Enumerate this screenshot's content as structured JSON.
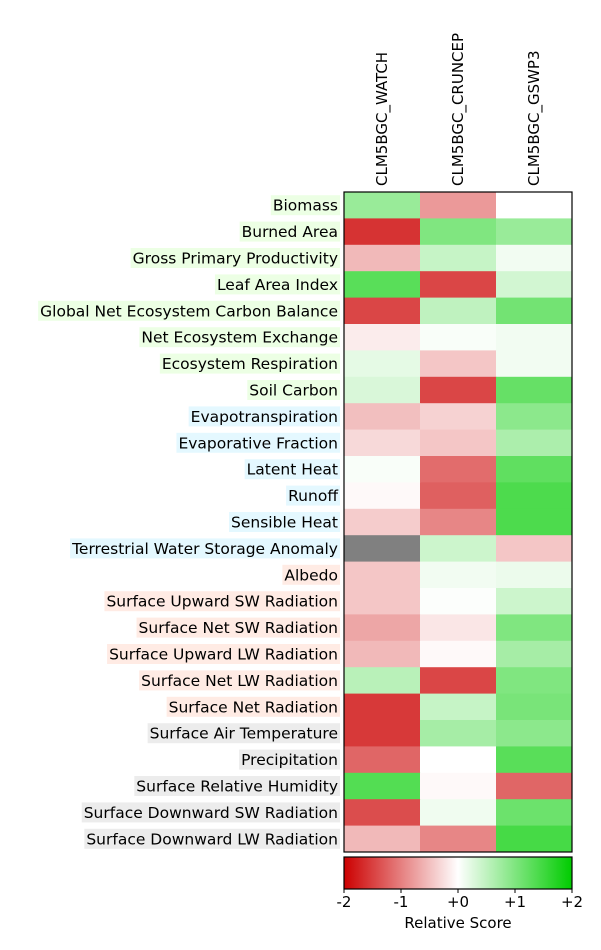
{
  "chart_data": {
    "type": "heatmap",
    "columns": [
      "CLM5BGC_WATCH",
      "CLM5BGC_CRUNCEP",
      "CLM5BGC_GSWP3"
    ],
    "rows": [
      {
        "label": "Biomass",
        "group": "ecosystem",
        "values": [
          0.8,
          -0.8,
          0.0
        ]
      },
      {
        "label": "Burned Area",
        "group": "ecosystem",
        "values": [
          -1.6,
          1.0,
          0.8
        ]
      },
      {
        "label": "Gross Primary Productivity",
        "group": "ecosystem",
        "values": [
          -0.55,
          0.45,
          0.1
        ]
      },
      {
        "label": "Leaf Area Index",
        "group": "ecosystem",
        "values": [
          1.3,
          -1.45,
          0.35
        ]
      },
      {
        "label": "Global Net Ecosystem Carbon Balance",
        "group": "ecosystem",
        "values": [
          -1.45,
          0.5,
          1.1
        ]
      },
      {
        "label": "Net Ecosystem Exchange",
        "group": "ecosystem",
        "values": [
          -0.15,
          0.05,
          0.1
        ]
      },
      {
        "label": "Ecosystem Respiration",
        "group": "ecosystem",
        "values": [
          0.2,
          -0.45,
          0.1
        ]
      },
      {
        "label": "Soil Carbon",
        "group": "ecosystem",
        "values": [
          0.3,
          -1.45,
          1.2
        ]
      },
      {
        "label": "Evapotranspiration",
        "group": "hydrology",
        "values": [
          -0.5,
          -0.35,
          0.9
        ]
      },
      {
        "label": "Evaporative Fraction",
        "group": "hydrology",
        "values": [
          -0.3,
          -0.45,
          0.65
        ]
      },
      {
        "label": "Latent Heat",
        "group": "hydrology",
        "values": [
          0.05,
          -1.15,
          1.25
        ]
      },
      {
        "label": "Runoff",
        "group": "hydrology",
        "values": [
          -0.05,
          -1.25,
          1.4
        ]
      },
      {
        "label": "Sensible Heat",
        "group": "hydrology",
        "values": [
          -0.4,
          -0.95,
          1.4
        ]
      },
      {
        "label": "Terrestrial Water Storage Anomaly",
        "group": "hydrology",
        "values": [
          null,
          0.4,
          -0.45
        ]
      },
      {
        "label": "Albedo",
        "group": "radiation",
        "values": [
          -0.45,
          0.1,
          0.15
        ]
      },
      {
        "label": "Surface Upward SW Radiation",
        "group": "radiation",
        "values": [
          -0.45,
          0.02,
          0.4
        ]
      },
      {
        "label": "Surface Net SW Radiation",
        "group": "radiation",
        "values": [
          -0.7,
          -0.2,
          1.0
        ]
      },
      {
        "label": "Surface Upward LW Radiation",
        "group": "radiation",
        "values": [
          -0.55,
          -0.05,
          0.7
        ]
      },
      {
        "label": "Surface Net LW Radiation",
        "group": "radiation",
        "values": [
          0.55,
          -1.45,
          1.0
        ]
      },
      {
        "label": "Surface Net Radiation",
        "group": "radiation",
        "values": [
          -1.55,
          0.45,
          1.05
        ]
      },
      {
        "label": "Surface Air Temperature",
        "group": "forcing",
        "values": [
          -1.55,
          0.7,
          0.9
        ]
      },
      {
        "label": "Precipitation",
        "group": "forcing",
        "values": [
          -1.2,
          0.0,
          1.3
        ]
      },
      {
        "label": "Surface Relative Humidity",
        "group": "forcing",
        "values": [
          1.35,
          -0.05,
          -1.2
        ]
      },
      {
        "label": "Surface Downward SW Radiation",
        "group": "forcing",
        "values": [
          -1.4,
          0.12,
          1.15
        ]
      },
      {
        "label": "Surface Downward LW Radiation",
        "group": "forcing",
        "values": [
          -0.55,
          -0.95,
          1.45
        ]
      }
    ],
    "group_colors": {
      "ecosystem": "#ecffe4",
      "hydrology": "#e4f8ff",
      "radiation": "#ffebe4",
      "forcing": "#ececec"
    },
    "missing_color": "#808080",
    "colorbar": {
      "title": "Relative Score",
      "range": [
        -2,
        2
      ],
      "ticks": [
        -2,
        -1,
        0,
        1,
        2
      ],
      "tick_labels": [
        "-2",
        "-1",
        "+0",
        "+1",
        "+2"
      ],
      "colors": {
        "low": "#cc0000",
        "mid": "#ffffff",
        "high": "#00cc00"
      }
    }
  }
}
